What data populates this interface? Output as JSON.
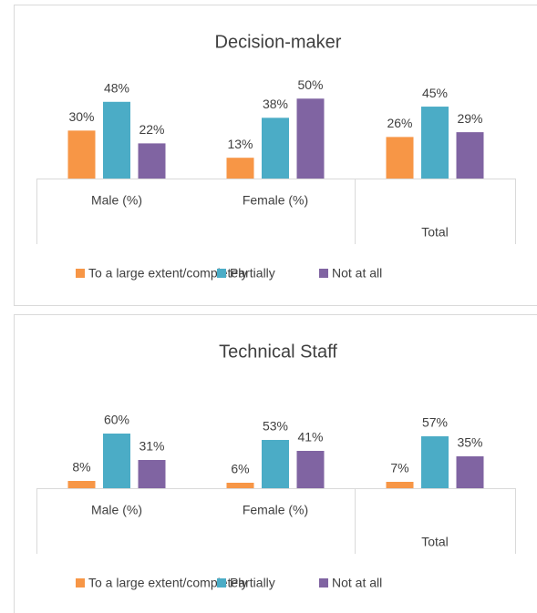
{
  "chart_data": [
    {
      "type": "bar",
      "title": "Decision-maker",
      "categories": [
        "Male (%)",
        "Female (%)",
        "Total"
      ],
      "series": [
        {
          "name": "To a large extent/completely",
          "color": "#f79646",
          "values": [
            30,
            13,
            26
          ],
          "value_labels": [
            "30%",
            "13%",
            "26%"
          ]
        },
        {
          "name": "Partially",
          "color": "#4bacc6",
          "values": [
            48,
            38,
            45
          ],
          "value_labels": [
            "48%",
            "38%",
            "45%"
          ]
        },
        {
          "name": "Not at all",
          "color": "#8064a2",
          "values": [
            22,
            50,
            29
          ],
          "value_labels": [
            "22%",
            "50%",
            "29%"
          ]
        }
      ],
      "ylim": [
        0,
        57
      ]
    },
    {
      "type": "bar",
      "title": "Technical Staff",
      "categories": [
        "Male (%)",
        "Female (%)",
        "Total"
      ],
      "series": [
        {
          "name": "To a large extent/completely",
          "color": "#f79646",
          "values": [
            8,
            6,
            7
          ],
          "value_labels": [
            "8%",
            "6%",
            "7%"
          ]
        },
        {
          "name": "Partially",
          "color": "#4bacc6",
          "values": [
            60,
            53,
            57
          ],
          "value_labels": [
            "60%",
            "53%",
            "57%"
          ]
        },
        {
          "name": "Not at all",
          "color": "#8064a2",
          "values": [
            31,
            41,
            35
          ],
          "value_labels": [
            "31%",
            "41%",
            "35%"
          ]
        }
      ],
      "ylim": [
        0,
        100
      ]
    }
  ]
}
